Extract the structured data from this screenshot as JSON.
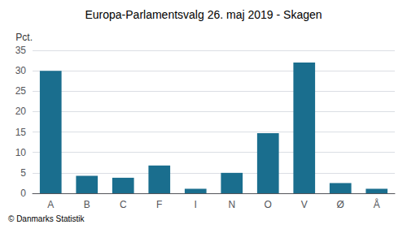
{
  "chart_data": {
    "type": "bar",
    "title": "Europa-Parlamentsvalg 26. maj 2019 - Skagen",
    "categories": [
      "A",
      "B",
      "C",
      "F",
      "I",
      "N",
      "O",
      "V",
      "Ø",
      "Å"
    ],
    "values": [
      30.0,
      4.3,
      3.8,
      6.8,
      1.1,
      5.0,
      14.7,
      32.0,
      2.5,
      1.1
    ],
    "color": "#1a6e8e",
    "ylabel": "Pct.",
    "ylim": [
      0,
      35
    ],
    "yticks": [
      0,
      5,
      10,
      15,
      20,
      25,
      30,
      35
    ],
    "grid": true,
    "footer": "© Danmarks Statistik"
  }
}
